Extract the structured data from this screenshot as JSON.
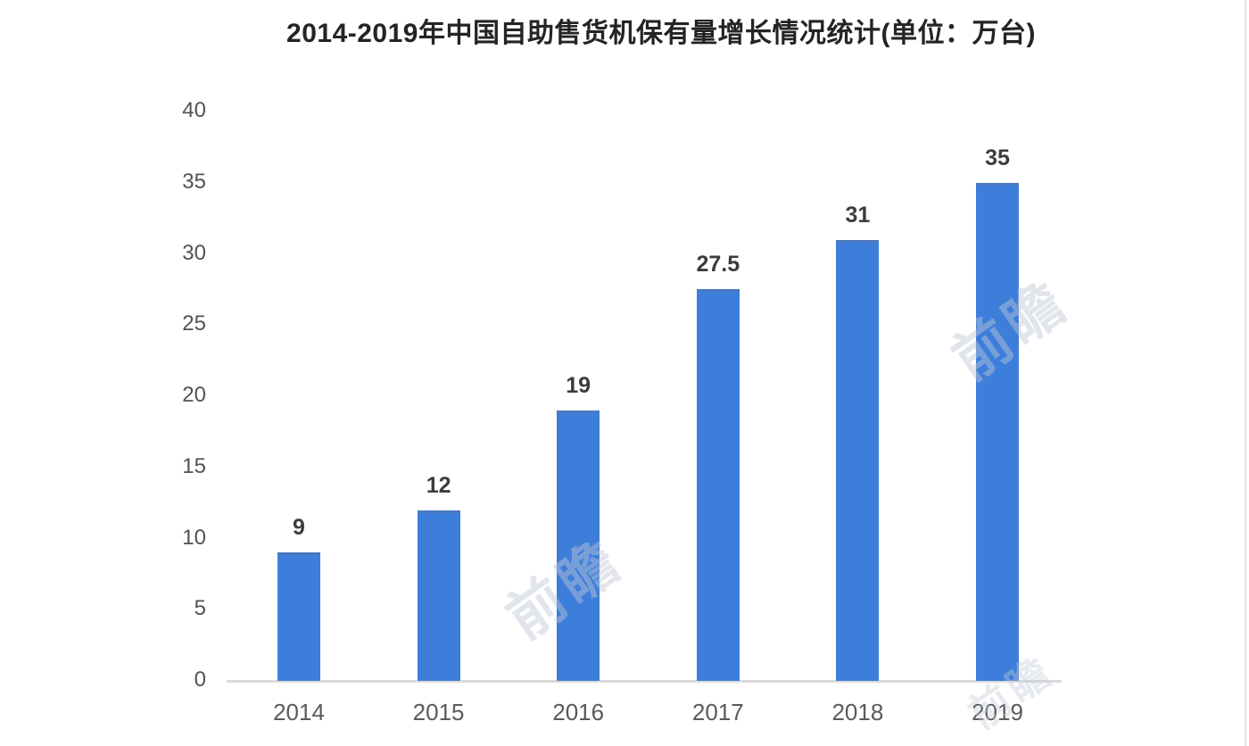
{
  "title": "2014-2019年中国自助售货机保有量增长情况统计(单位：万台)",
  "watermark_text": "前瞻",
  "chart_data": {
    "type": "bar",
    "title": "2014-2019年中国自助售货机保有量增长情况统计(单位：万台)",
    "unit": "万台",
    "categories": [
      "2014",
      "2015",
      "2016",
      "2017",
      "2018",
      "2019"
    ],
    "values": [
      9,
      12,
      19,
      27.5,
      31,
      35
    ],
    "value_labels": [
      "9",
      "12",
      "19",
      "27.5",
      "31",
      "35"
    ],
    "xlabel": "",
    "ylabel": "",
    "ylim": [
      0,
      40
    ],
    "y_ticks": [
      0,
      5,
      10,
      15,
      20,
      25,
      30,
      35,
      40
    ],
    "grid": false,
    "legend_position": "none",
    "bar_color": "#3e7edb",
    "axis_line_color": "#dadada",
    "title_color": "#242424",
    "tick_label_color": "#525252",
    "value_label_color": "#3c3c3c"
  }
}
